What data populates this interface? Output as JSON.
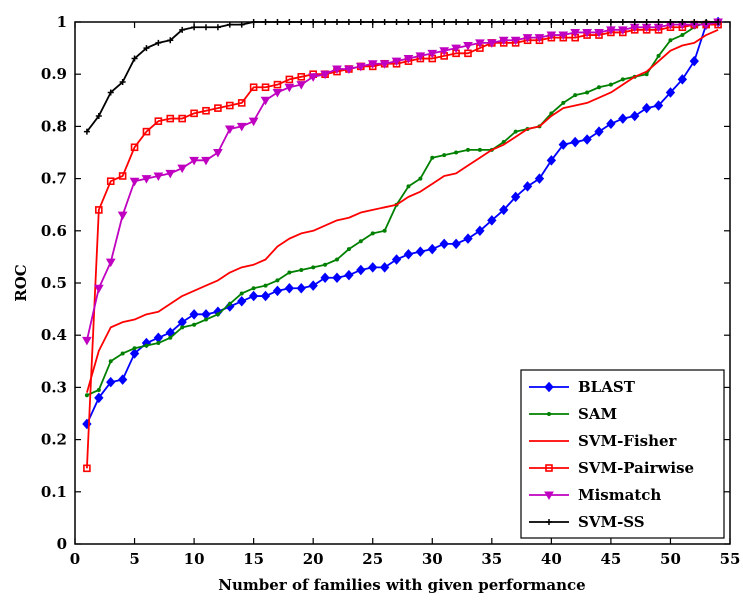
{
  "chart_data": {
    "type": "line",
    "title": "",
    "xlabel": "Number of families with given performance",
    "ylabel": "ROC",
    "xlim": [
      0,
      55
    ],
    "ylim": [
      0,
      1
    ],
    "xticks": [
      "0",
      "5",
      "10",
      "15",
      "20",
      "25",
      "30",
      "35",
      "40",
      "45",
      "50",
      "55"
    ],
    "yticks": [
      "0",
      "0.1",
      "0.2",
      "0.3",
      "0.4",
      "0.5",
      "0.6",
      "0.7",
      "0.8",
      "0.9",
      "1"
    ],
    "grid": false,
    "legend_position": "bottom-right",
    "series": [
      {
        "name": "BLAST",
        "color": "#0000ff",
        "marker": "diamond",
        "x": [
          1,
          2,
          3,
          4,
          5,
          6,
          7,
          8,
          9,
          10,
          11,
          12,
          13,
          14,
          15,
          16,
          17,
          18,
          19,
          20,
          21,
          22,
          23,
          24,
          25,
          26,
          27,
          28,
          29,
          30,
          31,
          32,
          33,
          34,
          35,
          36,
          37,
          38,
          39,
          40,
          41,
          42,
          43,
          44,
          45,
          46,
          47,
          48,
          49,
          50,
          51,
          52,
          53,
          54
        ],
        "values": [
          0.23,
          0.28,
          0.31,
          0.315,
          0.365,
          0.385,
          0.395,
          0.405,
          0.425,
          0.44,
          0.44,
          0.445,
          0.455,
          0.465,
          0.475,
          0.475,
          0.485,
          0.49,
          0.49,
          0.495,
          0.51,
          0.51,
          0.515,
          0.525,
          0.53,
          0.53,
          0.545,
          0.555,
          0.56,
          0.565,
          0.575,
          0.575,
          0.585,
          0.6,
          0.62,
          0.64,
          0.665,
          0.685,
          0.7,
          0.735,
          0.765,
          0.77,
          0.775,
          0.79,
          0.805,
          0.815,
          0.82,
          0.835,
          0.84,
          0.865,
          0.89,
          0.925,
          0.995,
          1.0
        ]
      },
      {
        "name": "SAM",
        "color": "#008000",
        "marker": "point",
        "x": [
          1,
          2,
          3,
          4,
          5,
          6,
          7,
          8,
          9,
          10,
          11,
          12,
          13,
          14,
          15,
          16,
          17,
          18,
          19,
          20,
          21,
          22,
          23,
          24,
          25,
          26,
          27,
          28,
          29,
          30,
          31,
          32,
          33,
          34,
          35,
          36,
          37,
          38,
          39,
          40,
          41,
          42,
          43,
          44,
          45,
          46,
          47,
          48,
          49,
          50,
          51,
          52,
          53,
          54
        ],
        "values": [
          0.285,
          0.295,
          0.35,
          0.365,
          0.375,
          0.38,
          0.385,
          0.395,
          0.415,
          0.42,
          0.43,
          0.44,
          0.46,
          0.48,
          0.49,
          0.495,
          0.505,
          0.52,
          0.525,
          0.53,
          0.535,
          0.545,
          0.565,
          0.58,
          0.595,
          0.6,
          0.65,
          0.685,
          0.7,
          0.74,
          0.745,
          0.75,
          0.755,
          0.755,
          0.755,
          0.77,
          0.79,
          0.795,
          0.8,
          0.825,
          0.845,
          0.86,
          0.865,
          0.875,
          0.88,
          0.89,
          0.895,
          0.9,
          0.935,
          0.965,
          0.975,
          0.99,
          1.0,
          1.0
        ]
      },
      {
        "name": "SVM-Fisher",
        "color": "#ff0000",
        "marker": "none",
        "x": [
          1,
          2,
          3,
          4,
          5,
          6,
          7,
          8,
          9,
          10,
          11,
          12,
          13,
          14,
          15,
          16,
          17,
          18,
          19,
          20,
          21,
          22,
          23,
          24,
          25,
          26,
          27,
          28,
          29,
          30,
          31,
          32,
          33,
          34,
          35,
          36,
          37,
          38,
          39,
          40,
          41,
          42,
          43,
          44,
          45,
          46,
          47,
          48,
          49,
          50,
          51,
          52,
          53,
          54
        ],
        "values": [
          0.29,
          0.37,
          0.415,
          0.425,
          0.43,
          0.44,
          0.445,
          0.46,
          0.475,
          0.485,
          0.495,
          0.505,
          0.52,
          0.53,
          0.535,
          0.545,
          0.57,
          0.585,
          0.595,
          0.6,
          0.61,
          0.62,
          0.625,
          0.635,
          0.64,
          0.645,
          0.65,
          0.665,
          0.675,
          0.69,
          0.705,
          0.71,
          0.725,
          0.74,
          0.755,
          0.765,
          0.78,
          0.795,
          0.8,
          0.82,
          0.835,
          0.84,
          0.845,
          0.855,
          0.865,
          0.88,
          0.895,
          0.905,
          0.925,
          0.945,
          0.955,
          0.96,
          0.975,
          0.985
        ]
      },
      {
        "name": "SVM-Pairwise",
        "color": "#ff0000",
        "marker": "square",
        "x": [
          1,
          2,
          3,
          4,
          5,
          6,
          7,
          8,
          9,
          10,
          11,
          12,
          13,
          14,
          15,
          16,
          17,
          18,
          19,
          20,
          21,
          22,
          23,
          24,
          25,
          26,
          27,
          28,
          29,
          30,
          31,
          32,
          33,
          34,
          35,
          36,
          37,
          38,
          39,
          40,
          41,
          42,
          43,
          44,
          45,
          46,
          47,
          48,
          49,
          50,
          51,
          52,
          53,
          54
        ],
        "values": [
          0.145,
          0.64,
          0.695,
          0.705,
          0.76,
          0.79,
          0.81,
          0.815,
          0.815,
          0.825,
          0.83,
          0.835,
          0.84,
          0.845,
          0.875,
          0.875,
          0.88,
          0.89,
          0.895,
          0.9,
          0.9,
          0.905,
          0.91,
          0.915,
          0.915,
          0.92,
          0.92,
          0.925,
          0.93,
          0.93,
          0.935,
          0.94,
          0.94,
          0.95,
          0.96,
          0.96,
          0.96,
          0.965,
          0.965,
          0.97,
          0.97,
          0.97,
          0.975,
          0.975,
          0.98,
          0.98,
          0.985,
          0.985,
          0.985,
          0.99,
          0.99,
          0.995,
          0.995,
          0.995
        ]
      },
      {
        "name": "Mismatch",
        "color": "#c000c0",
        "marker": "triangle-down",
        "x": [
          1,
          2,
          3,
          4,
          5,
          6,
          7,
          8,
          9,
          10,
          11,
          12,
          13,
          14,
          15,
          16,
          17,
          18,
          19,
          20,
          21,
          22,
          23,
          24,
          25,
          26,
          27,
          28,
          29,
          30,
          31,
          32,
          33,
          34,
          35,
          36,
          37,
          38,
          39,
          40,
          41,
          42,
          43,
          44,
          45,
          46,
          47,
          48,
          49,
          50,
          51,
          52,
          53,
          54
        ],
        "values": [
          0.39,
          0.49,
          0.54,
          0.63,
          0.695,
          0.7,
          0.705,
          0.71,
          0.72,
          0.735,
          0.735,
          0.75,
          0.795,
          0.8,
          0.81,
          0.85,
          0.865,
          0.875,
          0.88,
          0.895,
          0.9,
          0.91,
          0.91,
          0.915,
          0.92,
          0.92,
          0.925,
          0.93,
          0.935,
          0.94,
          0.945,
          0.95,
          0.955,
          0.96,
          0.96,
          0.965,
          0.965,
          0.97,
          0.97,
          0.975,
          0.975,
          0.98,
          0.98,
          0.98,
          0.985,
          0.985,
          0.99,
          0.99,
          0.99,
          0.995,
          0.995,
          0.995,
          0.995,
          1.0
        ]
      },
      {
        "name": "SVM-SS",
        "color": "#000000",
        "marker": "plus",
        "x": [
          1,
          2,
          3,
          4,
          5,
          6,
          7,
          8,
          9,
          10,
          11,
          12,
          13,
          14,
          15,
          16,
          17,
          18,
          19,
          20,
          21,
          22,
          23,
          24,
          25,
          26,
          27,
          28,
          29,
          30,
          31,
          32,
          33,
          34,
          35,
          36,
          37,
          38,
          39,
          40,
          41,
          42,
          43,
          44,
          45,
          46,
          47,
          48,
          49,
          50,
          51,
          52,
          53,
          54
        ],
        "values": [
          0.79,
          0.82,
          0.865,
          0.885,
          0.93,
          0.95,
          0.96,
          0.965,
          0.985,
          0.99,
          0.99,
          0.99,
          0.995,
          0.995,
          1.0,
          1.0,
          1.0,
          1.0,
          1.0,
          1.0,
          1.0,
          1.0,
          1.0,
          1.0,
          1.0,
          1.0,
          1.0,
          1.0,
          1.0,
          1.0,
          1.0,
          1.0,
          1.0,
          1.0,
          1.0,
          1.0,
          1.0,
          1.0,
          1.0,
          1.0,
          1.0,
          1.0,
          1.0,
          1.0,
          1.0,
          1.0,
          1.0,
          1.0,
          1.0,
          1.0,
          1.0,
          1.0,
          1.0,
          1.0
        ]
      }
    ]
  }
}
